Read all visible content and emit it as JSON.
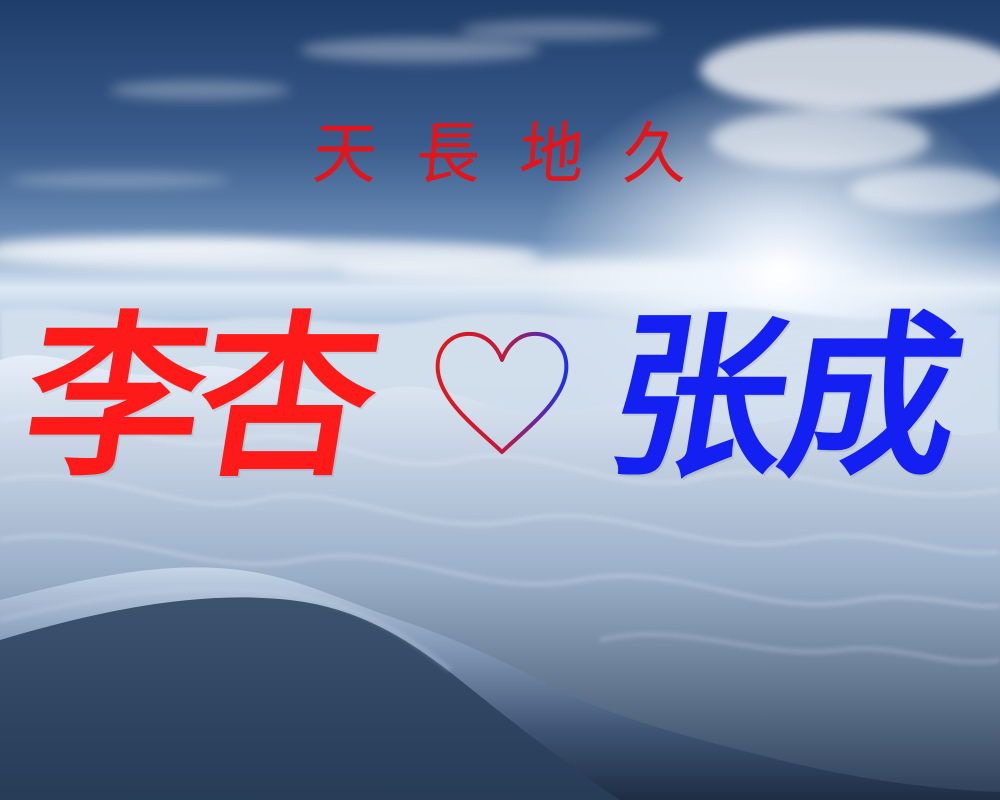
{
  "colors": {
    "motto": "#e0161c",
    "left_name": "#ff1a1a",
    "right_name": "#1420f2",
    "heart_left": "#e01a1a",
    "heart_right": "#2030e8",
    "sky_top": "#3a5c8c",
    "sky_horizon": "#dce8f4",
    "mountain_dark": "#2a3f5c",
    "mountain_light": "#c8d6e8"
  },
  "motto": {
    "chars": [
      "天",
      "長",
      "地",
      "久"
    ]
  },
  "names": {
    "left": "李杏",
    "right": "张成"
  },
  "icons": {
    "heart": "heart-outline-icon"
  }
}
